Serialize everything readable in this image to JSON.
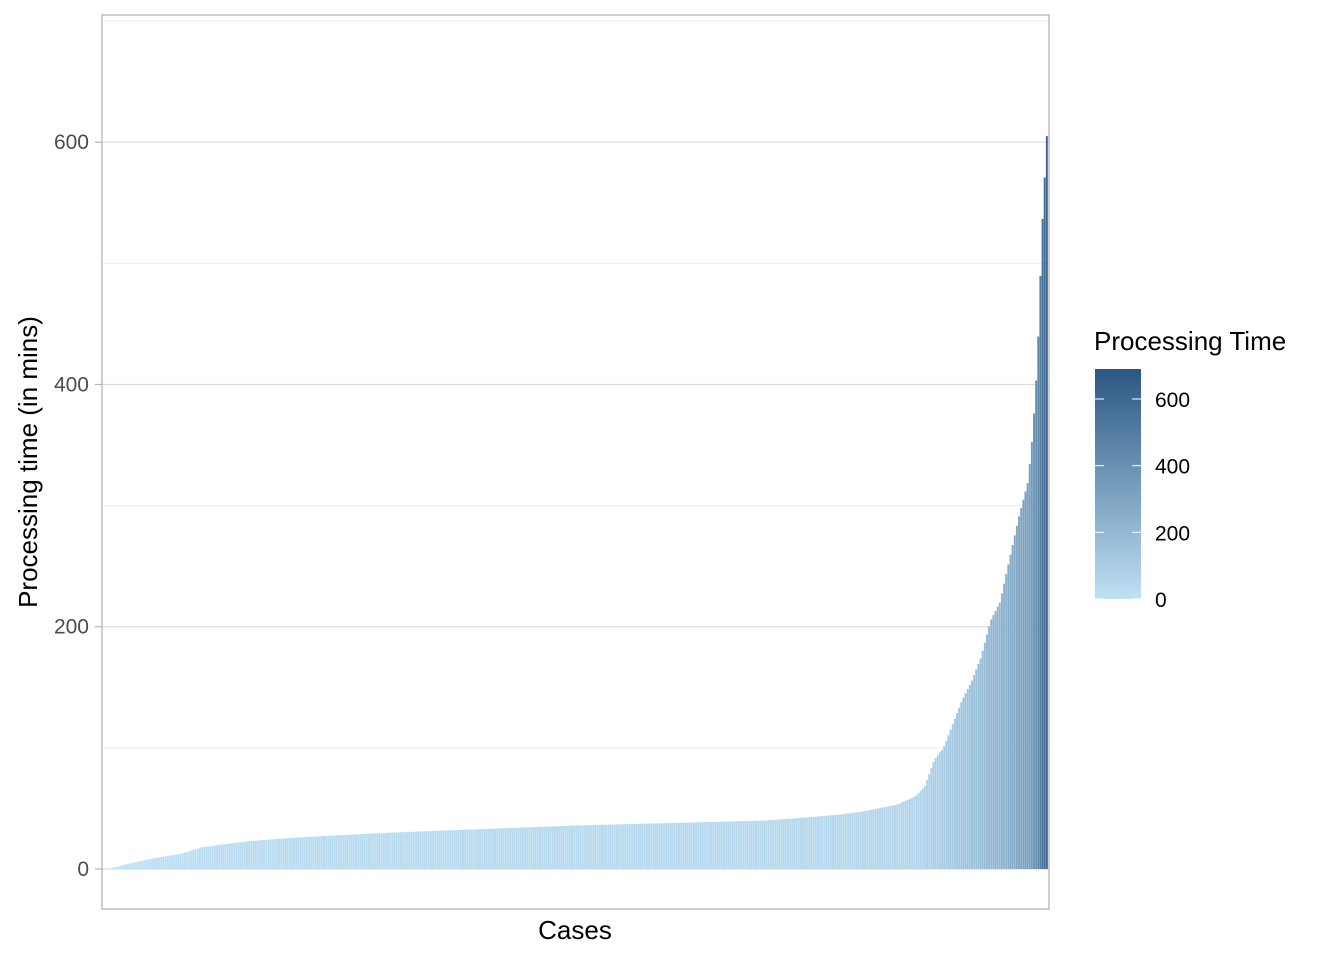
{
  "chart_data": {
    "type": "bar",
    "title": "",
    "xlabel": "Cases",
    "ylabel": "Processing time (in mins)",
    "ylim": [
      -33,
      705
    ],
    "yticks": [
      0,
      200,
      400,
      600
    ],
    "y_minor_gridlines": [
      100,
      300,
      500,
      700
    ],
    "grid": true,
    "x_tick_labels": false,
    "num_cases": 440,
    "series": [
      {
        "name": "Processing time (in mins)",
        "sorted": "ascending",
        "quantiles": {
          "q": [
            0.0,
            0.02,
            0.05,
            0.08,
            0.1,
            0.15,
            0.2,
            0.25,
            0.3,
            0.4,
            0.5,
            0.6,
            0.7,
            0.75,
            0.78,
            0.8,
            0.82,
            0.84,
            0.86,
            0.87,
            0.88,
            0.89,
            0.9,
            0.91,
            0.92,
            0.93,
            0.94,
            0.95,
            0.96,
            0.97,
            0.98,
            0.985,
            0.99,
            0.995,
            1.0
          ],
          "values": [
            0,
            4,
            9,
            13,
            18,
            23,
            26,
            28,
            30,
            33,
            36,
            38,
            40,
            43,
            45,
            47,
            50,
            53,
            60,
            68,
            90,
            100,
            120,
            140,
            155,
            175,
            205,
            220,
            255,
            290,
            320,
            360,
            420,
            530,
            605
          ]
        }
      }
    ],
    "legend": {
      "title": "Processing Time",
      "position": "right",
      "ticks": [
        0,
        200,
        400,
        600
      ],
      "range": [
        0,
        690
      ],
      "color_low": "#bfe1f5",
      "color_high": "#2b5682"
    }
  }
}
